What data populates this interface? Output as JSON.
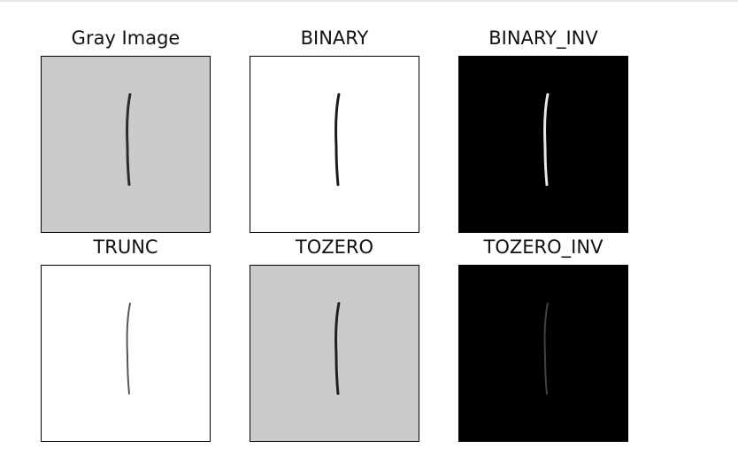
{
  "figure": {
    "panels": [
      {
        "title": "Gray Image",
        "background": "#cbcbcb",
        "stroke": "#2a2a2a",
        "stroke_opacity": 1.0
      },
      {
        "title": "BINARY",
        "background": "#ffffff",
        "stroke": "#1a1a1a",
        "stroke_opacity": 1.0
      },
      {
        "title": "BINARY_INV",
        "background": "#000000",
        "stroke": "#e8e8e8",
        "stroke_opacity": 1.0
      },
      {
        "title": "TRUNC",
        "background": "#ffffff",
        "stroke": "#3a3a3a",
        "stroke_opacity": 0.85
      },
      {
        "title": "TOZERO",
        "background": "#cbcbcb",
        "stroke": "#202020",
        "stroke_opacity": 1.0
      },
      {
        "title": "TOZERO_INV",
        "background": "#000000",
        "stroke": "#4a4a4a",
        "stroke_opacity": 0.9
      }
    ]
  }
}
